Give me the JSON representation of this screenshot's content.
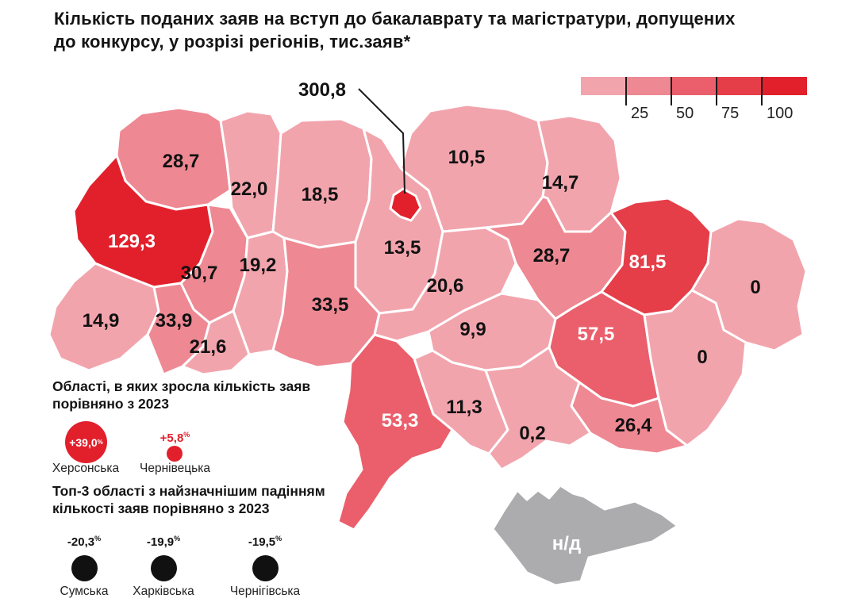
{
  "title": "Кількість поданих заяв на вступ до бакалаврату та магістратури, допущених до конкурсу, у розрізі регіонів, тис.заяв*",
  "band_colors": [
    "#F2A4AD",
    "#EE8893",
    "#EA5F6B",
    "#E53E49",
    "#E2202C"
  ],
  "no_data_color": "#ACACAE",
  "legend": {
    "ticks": [
      "25",
      "50",
      "75",
      "100"
    ]
  },
  "callout": {
    "value": "300,8"
  },
  "chart_data": {
    "type": "choropleth",
    "title": "Кількість поданих заяв на вступ до бакалаврату та магістратури, допущених до конкурсу, у розрізі регіонів, тис.заяв*",
    "unit": "тис. заяв",
    "legend_breaks": [
      25,
      50,
      75,
      100
    ],
    "values": [
      {
        "region": "volyn",
        "value": "28,7",
        "band": 2
      },
      {
        "region": "rivne",
        "value": "22,0",
        "band": 1
      },
      {
        "region": "zhytomyr",
        "value": "18,5",
        "band": 1
      },
      {
        "region": "chernihiv",
        "value": "10,5",
        "band": 1
      },
      {
        "region": "sumy",
        "value": "14,7",
        "band": 1
      },
      {
        "region": "lviv",
        "value": "129,3",
        "band": 5
      },
      {
        "region": "ternopil",
        "value": "30,7",
        "band": 2
      },
      {
        "region": "khmelnytskyi",
        "value": "19,2",
        "band": 1
      },
      {
        "region": "kyiv-oblast",
        "value": "13,5",
        "band": 1
      },
      {
        "region": "poltava",
        "value": "28,7",
        "band": 2
      },
      {
        "region": "kharkiv",
        "value": "81,5",
        "band": 4
      },
      {
        "region": "luhansk",
        "value": "0",
        "band": 1
      },
      {
        "region": "zakarpattia",
        "value": "14,9",
        "band": 1
      },
      {
        "region": "ivano-frankivsk",
        "value": "33,9",
        "band": 2
      },
      {
        "region": "vinnytsia",
        "value": "33,5",
        "band": 2
      },
      {
        "region": "cherkasy",
        "value": "20,6",
        "band": 1
      },
      {
        "region": "dnipro",
        "value": "57,5",
        "band": 3
      },
      {
        "region": "donetsk",
        "value": "0",
        "band": 1
      },
      {
        "region": "chernivtsi",
        "value": "21,6",
        "band": 1
      },
      {
        "region": "kirovohrad",
        "value": "9,9",
        "band": 1
      },
      {
        "region": "odesa",
        "value": "53,3",
        "band": 3
      },
      {
        "region": "mykolaiv",
        "value": "11,3",
        "band": 1
      },
      {
        "region": "zaporizhzhia",
        "value": "26,4",
        "band": 2
      },
      {
        "region": "kherson",
        "value": "0,2",
        "band": 1
      },
      {
        "region": "kyiv-city",
        "value": "300,8",
        "band": 5
      },
      {
        "region": "crimea",
        "value": "н/д",
        "band": 0
      }
    ]
  },
  "growth_section": {
    "title": "Області, в яких зросла кількість заяв порівняно з 2023",
    "items": [
      {
        "value": "+39,0",
        "unit": "%",
        "region": "Херсонська"
      },
      {
        "value": "+5,8",
        "unit": "%",
        "region": "Чернівецька"
      }
    ]
  },
  "decline_section": {
    "title": "Топ-3 області з найзначнішим падінням кількості заяв порівняно з 2023",
    "items": [
      {
        "value": "-20,3",
        "unit": "%",
        "region": "Сумська"
      },
      {
        "value": "-19,9",
        "unit": "%",
        "region": "Харківська"
      },
      {
        "value": "-19,5",
        "unit": "%",
        "region": "Чернігівська"
      }
    ]
  }
}
